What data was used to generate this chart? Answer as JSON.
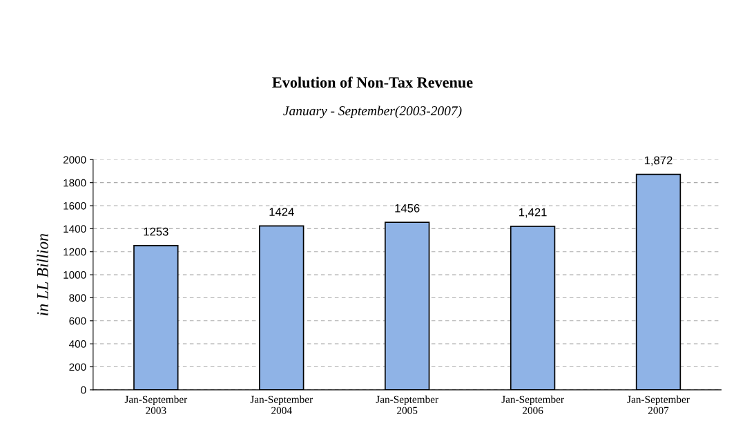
{
  "chart_data": {
    "type": "bar",
    "title": "Evolution of Non-Tax Revenue",
    "subtitle": "January - September(2003-2007)",
    "ylabel": "in LL Billion",
    "categories": [
      "Jan-September\n2003",
      "Jan-September\n2004",
      "Jan-September\n2005",
      "Jan-September\n2006",
      "Jan-September\n2007"
    ],
    "values": [
      1253,
      1424,
      1456,
      1421,
      1872
    ],
    "value_labels": [
      "1253",
      "1424",
      "1456",
      "1,421",
      "1,872"
    ],
    "color": "#8fb3e6",
    "ylim": [
      0,
      2000
    ],
    "yticks": [
      0,
      200,
      400,
      600,
      800,
      1000,
      1200,
      1400,
      1600,
      1800,
      2000
    ],
    "grid": "y",
    "legend": false
  }
}
